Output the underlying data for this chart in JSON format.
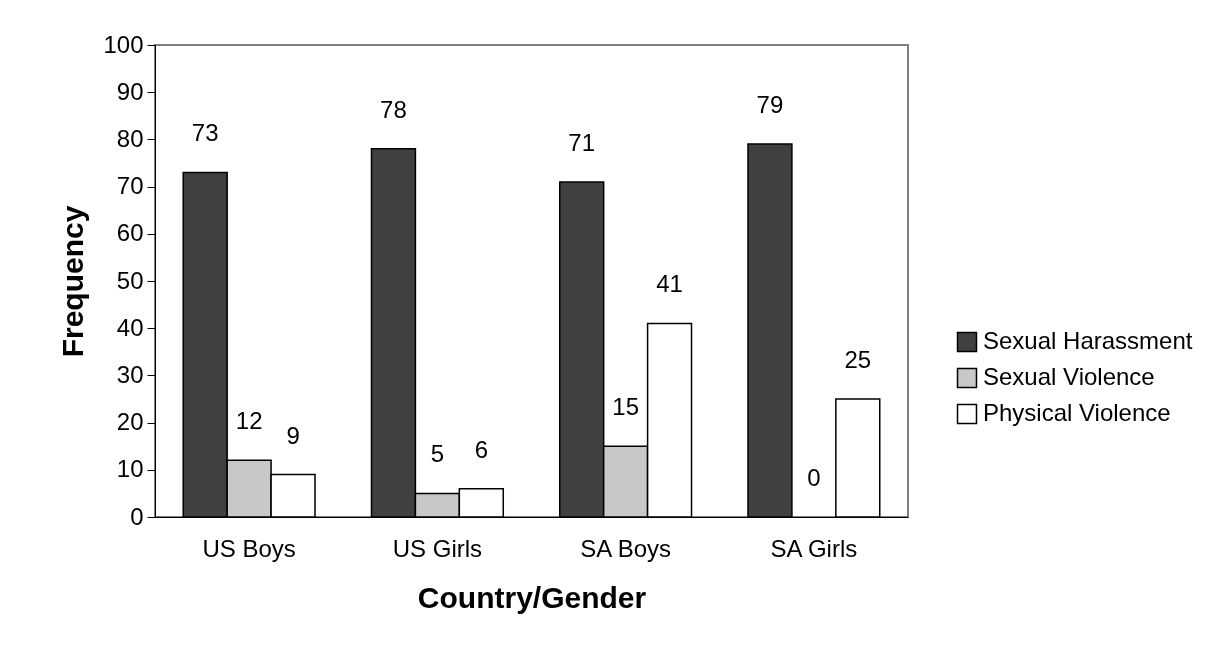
{
  "chart_data": {
    "type": "bar",
    "xlabel": "Country/Gender",
    "ylabel": "Frequency",
    "categories": [
      "US Boys",
      "US Girls",
      "SA  Boys",
      "SA Girls"
    ],
    "series": [
      {
        "name": "Sexual Harassment",
        "color": "#404040",
        "values": [
          73,
          78,
          71,
          79
        ]
      },
      {
        "name": "Sexual Violence",
        "color": "#c8c8c8",
        "values": [
          12,
          5,
          15,
          0
        ]
      },
      {
        "name": "Physical Violence",
        "color": "#ffffff",
        "values": [
          9,
          6,
          41,
          25
        ]
      }
    ],
    "ylim": [
      0,
      100
    ],
    "yticks": [
      0,
      10,
      20,
      30,
      40,
      50,
      60,
      70,
      80,
      90,
      100
    ],
    "grid": false,
    "legend": "right",
    "data_labels": true
  }
}
